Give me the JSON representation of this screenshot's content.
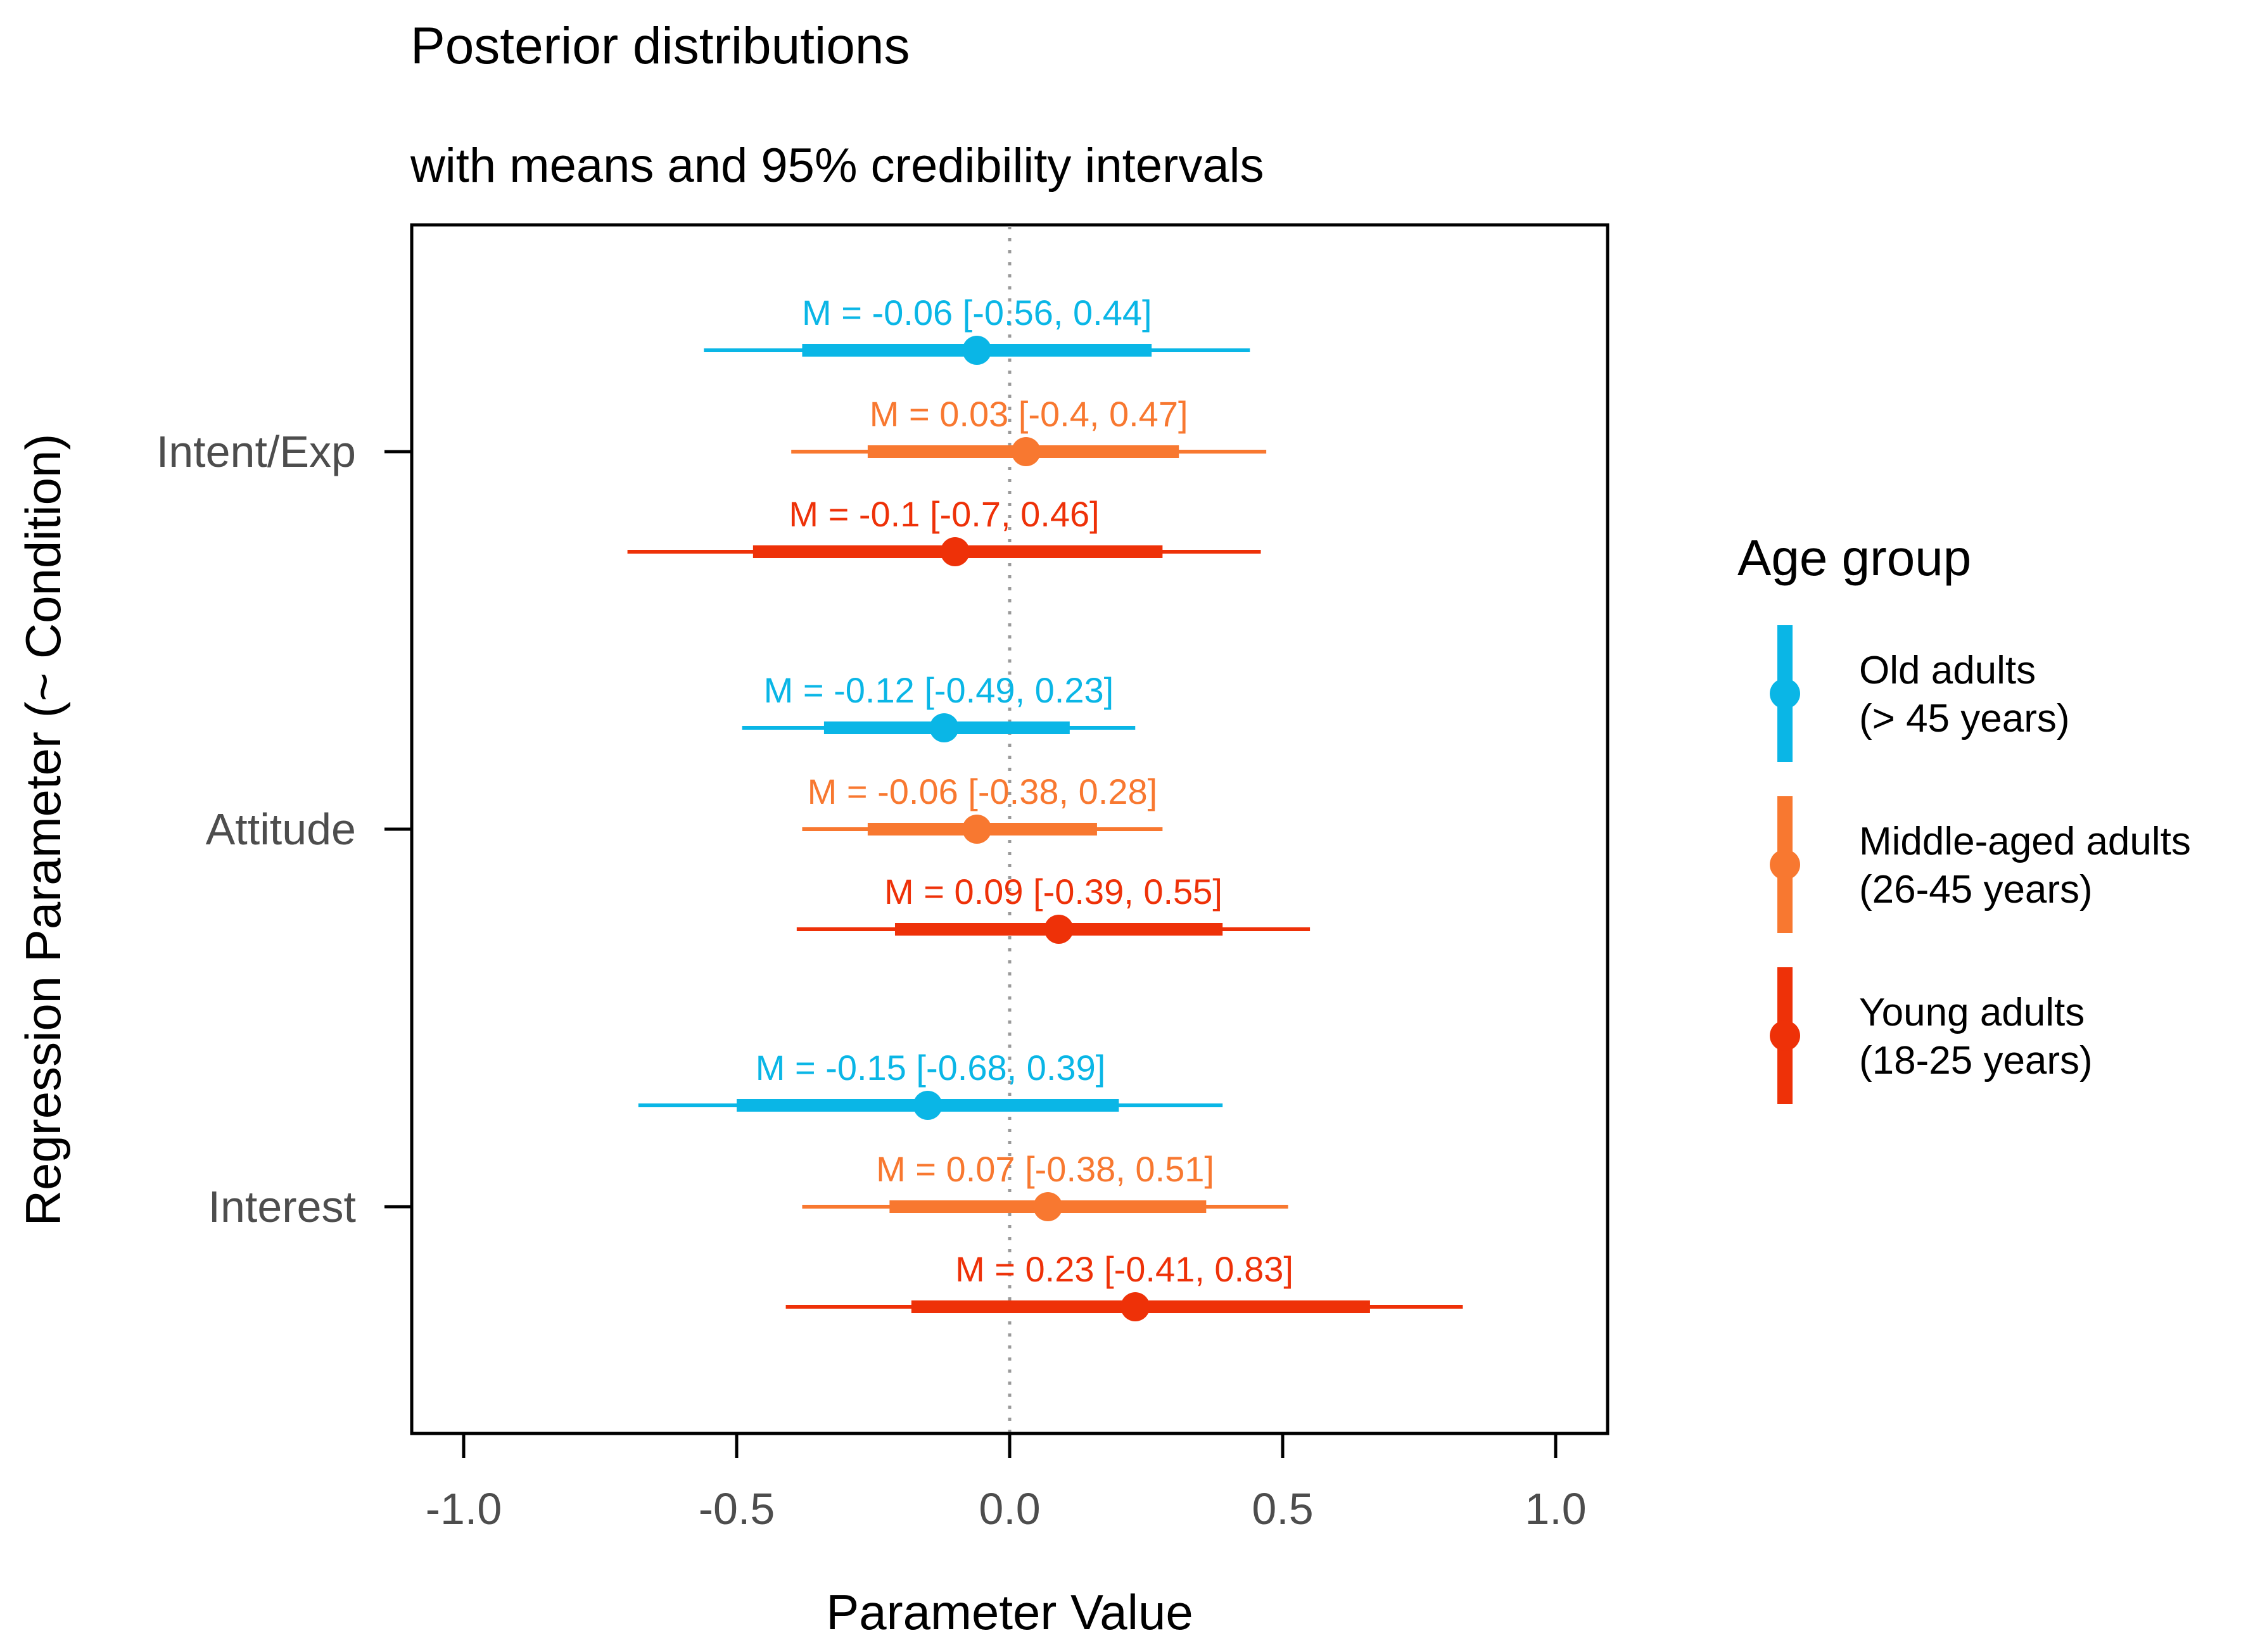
{
  "chart_data": {
    "type": "interval",
    "title": "Posterior distributions",
    "subtitle": "with means and 95% credibility intervals",
    "xlabel": "Parameter Value",
    "ylabel": "Regression Parameter (~ Condition)",
    "xlim": [
      -1.1,
      1.1
    ],
    "xticks": [
      -1.0,
      -0.5,
      0.0,
      0.5,
      1.0
    ],
    "xtick_labels": [
      "-1.0",
      "-0.5",
      "0.0",
      "0.5",
      "1.0"
    ],
    "reference_line": 0.0,
    "categories": [
      "Intent/Exp",
      "Attitude",
      "Interest"
    ],
    "legend": {
      "title": "Age group",
      "position": "right",
      "entries": [
        {
          "key": "old",
          "line1": "Old adults",
          "line2": "(> 45 years)",
          "color": "#0ab6e6"
        },
        {
          "key": "middle",
          "line1": "Middle-aged adults",
          "line2": "(26-45 years)",
          "color": "#f87830"
        },
        {
          "key": "young",
          "line1": "Young adults",
          "line2": "(18-25 years)",
          "color": "#ee3108"
        }
      ]
    },
    "series": [
      {
        "name": "Old adults",
        "color": "#0ab6e6",
        "points": [
          {
            "category": "Intent/Exp",
            "mean": -0.06,
            "lower95": -0.56,
            "upper95": 0.44,
            "lower_inner": -0.38,
            "upper_inner": 0.26,
            "label": "M = -0.06 [-0.56, 0.44]"
          },
          {
            "category": "Attitude",
            "mean": -0.12,
            "lower95": -0.49,
            "upper95": 0.23,
            "lower_inner": -0.34,
            "upper_inner": 0.11,
            "label": "M = -0.12 [-0.49, 0.23]"
          },
          {
            "category": "Interest",
            "mean": -0.15,
            "lower95": -0.68,
            "upper95": 0.39,
            "lower_inner": -0.5,
            "upper_inner": 0.2,
            "label": "M = -0.15 [-0.68, 0.39]"
          }
        ]
      },
      {
        "name": "Middle-aged adults",
        "color": "#f87830",
        "points": [
          {
            "category": "Intent/Exp",
            "mean": 0.03,
            "lower95": -0.4,
            "upper95": 0.47,
            "lower_inner": -0.26,
            "upper_inner": 0.31,
            "label": "M = 0.03 [-0.4, 0.47]"
          },
          {
            "category": "Attitude",
            "mean": -0.06,
            "lower95": -0.38,
            "upper95": 0.28,
            "lower_inner": -0.26,
            "upper_inner": 0.16,
            "label": "M = -0.06 [-0.38, 0.28]"
          },
          {
            "category": "Interest",
            "mean": 0.07,
            "lower95": -0.38,
            "upper95": 0.51,
            "lower_inner": -0.22,
            "upper_inner": 0.36,
            "label": "M = 0.07 [-0.38, 0.51]"
          }
        ]
      },
      {
        "name": "Young adults",
        "color": "#ee3108",
        "points": [
          {
            "category": "Intent/Exp",
            "mean": -0.1,
            "lower95": -0.7,
            "upper95": 0.46,
            "lower_inner": -0.47,
            "upper_inner": 0.28,
            "label": "M = -0.1 [-0.7, 0.46]"
          },
          {
            "category": "Attitude",
            "mean": 0.09,
            "lower95": -0.39,
            "upper95": 0.55,
            "lower_inner": -0.21,
            "upper_inner": 0.39,
            "label": "M = 0.09 [-0.39, 0.55]"
          },
          {
            "category": "Interest",
            "mean": 0.23,
            "lower95": -0.41,
            "upper95": 0.83,
            "lower_inner": -0.18,
            "upper_inner": 0.66,
            "label": "M = 0.23 [-0.41, 0.83]"
          }
        ]
      }
    ]
  }
}
